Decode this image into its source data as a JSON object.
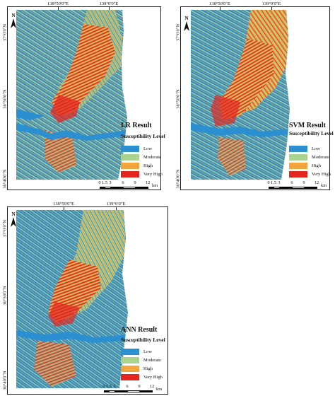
{
  "colors": {
    "low": "#2b8fd2",
    "moderate": "#a9d38e",
    "high": "#f4a43c",
    "very_high": "#e3261f"
  },
  "icons": {
    "north_arrow": "north-arrow-icon"
  },
  "legend": {
    "title": "Susceptibility Level",
    "items": [
      {
        "key": "low",
        "label": "Low"
      },
      {
        "key": "moderate",
        "label": "Moderate"
      },
      {
        "key": "high",
        "label": "High"
      },
      {
        "key": "very_high",
        "label": "Very High"
      }
    ]
  },
  "scalebar": {
    "ticks": [
      "0",
      "1.5",
      "3",
      "6",
      "9",
      "12"
    ],
    "unit": "km"
  },
  "north_label": "N",
  "panels": [
    {
      "id": "lr",
      "title": "LR Result",
      "lon_labels": [
        "138°50'0\"E",
        "139°0'0\"E"
      ],
      "lat_labels": [
        "37°0'0\"N",
        "36°50'0\"N",
        "36°40'0\"N"
      ]
    },
    {
      "id": "svm",
      "title": "SVM Result",
      "lon_labels": [
        "138°50'0\"E",
        "139°0'0\"E"
      ],
      "lat_labels": [
        "37°0'0\"N",
        "36°50'0\"N",
        "36°40'0\"N"
      ]
    },
    {
      "id": "ann",
      "title": "ANN Result",
      "lon_labels": [
        "138°50'0\"E",
        "139°0'0\"E"
      ],
      "lat_labels": [
        "37°0'0\"N",
        "36°50'0\"N",
        "36°40'0\"N"
      ]
    }
  ]
}
